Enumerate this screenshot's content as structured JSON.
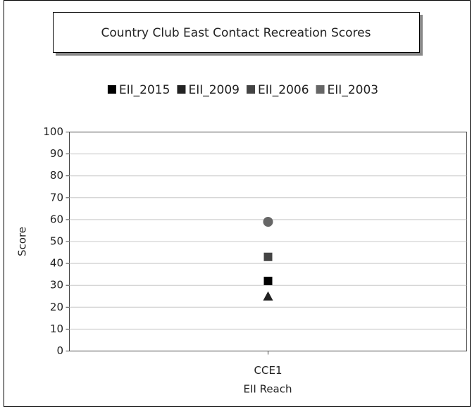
{
  "chart_data": {
    "type": "point",
    "title": "Country Club East Contact Recreation Scores",
    "x_label": "EII Reach",
    "y_label": "Score",
    "categories": [
      "CCE1"
    ],
    "series": [
      {
        "name": "EII_2015",
        "color": "#000000",
        "shape": "square",
        "values": [
          32
        ]
      },
      {
        "name": "EII_2009",
        "color": "#222222",
        "shape": "triangle",
        "values": [
          25
        ]
      },
      {
        "name": "EII_2006",
        "color": "#444444",
        "shape": "square",
        "values": [
          43
        ]
      },
      {
        "name": "EII_2003",
        "color": "#666666",
        "shape": "circle",
        "values": [
          59
        ]
      }
    ],
    "ylim": [
      0,
      100
    ],
    "yticks": [
      0,
      10,
      20,
      30,
      40,
      50,
      60,
      70,
      80,
      90,
      100
    ],
    "grid": true,
    "legend": "top"
  }
}
